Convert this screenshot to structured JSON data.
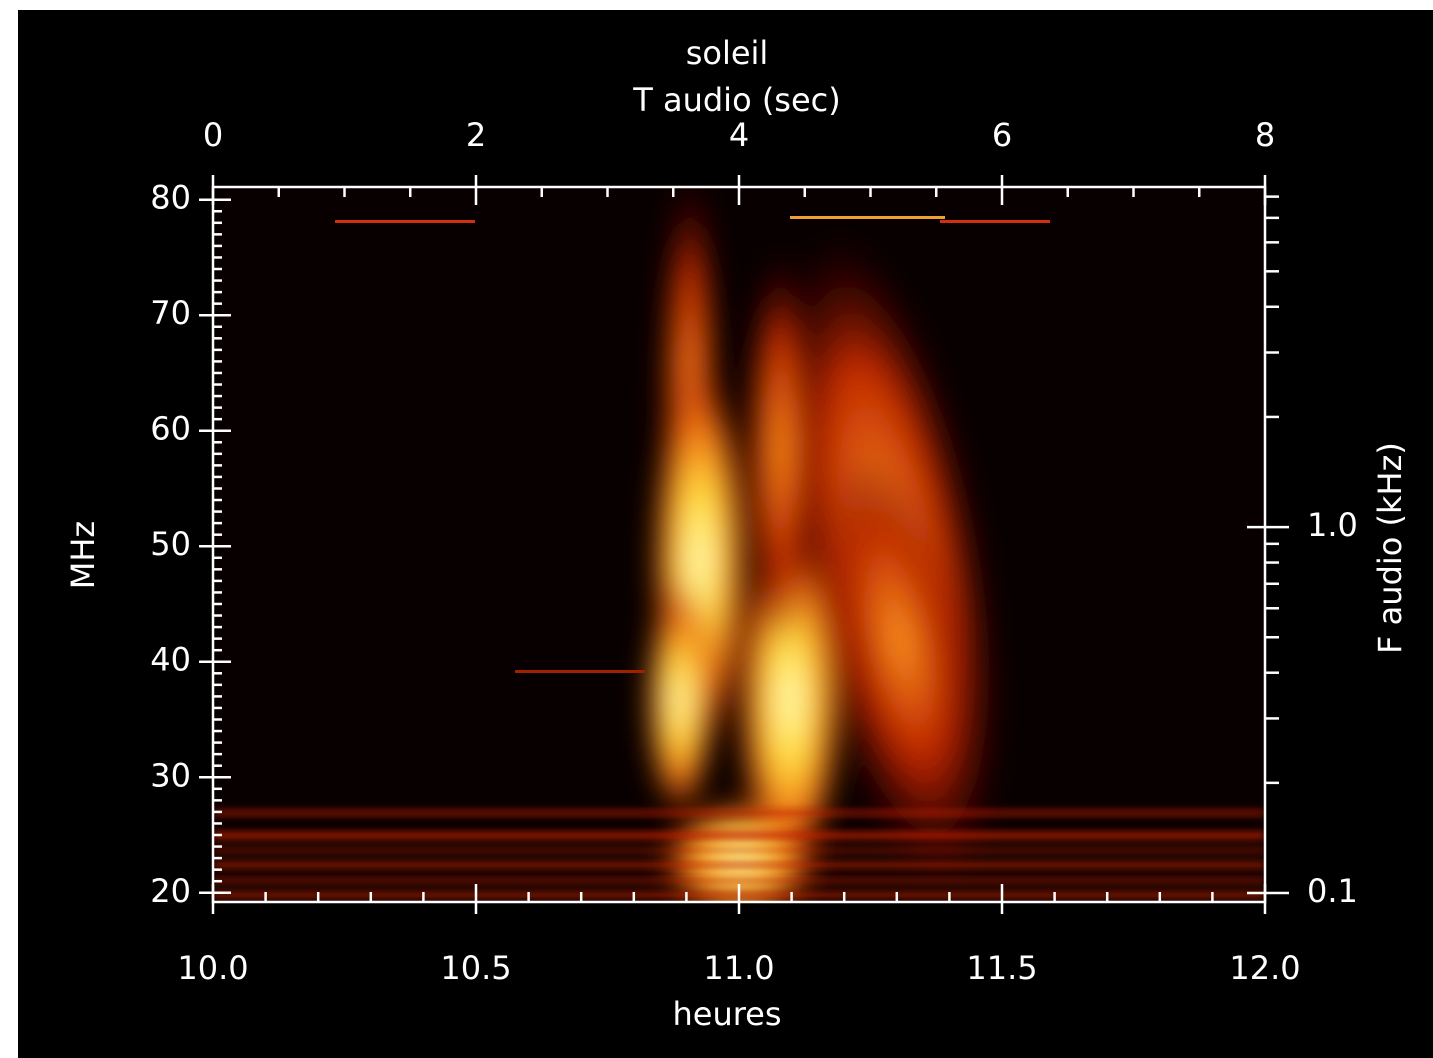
{
  "chart_data": {
    "type": "spectrogram",
    "title": "soleil",
    "xlabel": "heures",
    "xlim": [
      10,
      12
    ],
    "xticks": [
      {
        "value": 10,
        "label": "10.0"
      },
      10.5,
      {
        "value": 11,
        "label": "11.0"
      },
      11.5,
      {
        "value": 12,
        "label": "12.0"
      }
    ],
    "xminorticks": [
      10.1,
      10.2,
      10.3,
      10.4,
      10.6,
      10.7,
      10.8,
      10.9,
      11.1,
      11.2,
      11.3,
      11.4,
      11.6,
      11.7,
      11.8,
      11.9
    ],
    "x2label": "T audio (sec)",
    "x2lim": [
      0,
      8
    ],
    "x2ticks": [
      0,
      2,
      4,
      6,
      8
    ],
    "x2minorticks": [
      0.5,
      1,
      1.5,
      2.5,
      3,
      3.5,
      4.5,
      5,
      5.5,
      6.5,
      7,
      7.5
    ],
    "ylabel": "MHz",
    "ylim": [
      19.2,
      81.1
    ],
    "yticks": [
      20,
      30,
      40,
      50,
      60,
      70,
      80
    ],
    "yminorticks": [
      21,
      22,
      23,
      24,
      25,
      26,
      27,
      28,
      29,
      31,
      32,
      33,
      34,
      35,
      36,
      37,
      38,
      39,
      41,
      42,
      43,
      44,
      45,
      46,
      47,
      48,
      49,
      51,
      52,
      53,
      54,
      55,
      56,
      57,
      58,
      59,
      61,
      62,
      63,
      64,
      65,
      66,
      67,
      68,
      69,
      71,
      72,
      73,
      74,
      75,
      76,
      77,
      78,
      79
    ],
    "y2label": "F audio (kHz)",
    "y2scale": "log",
    "y2lim": [
      0.0945,
      8.5
    ],
    "y2ticks": [
      0.1,
      {
        "value": 1,
        "label": "1.0"
      }
    ],
    "y2minorticks": [
      0.2,
      0.3,
      0.4,
      0.5,
      0.6,
      0.7,
      0.8,
      0.9,
      2,
      3,
      4,
      5,
      6,
      7,
      8
    ]
  }
}
